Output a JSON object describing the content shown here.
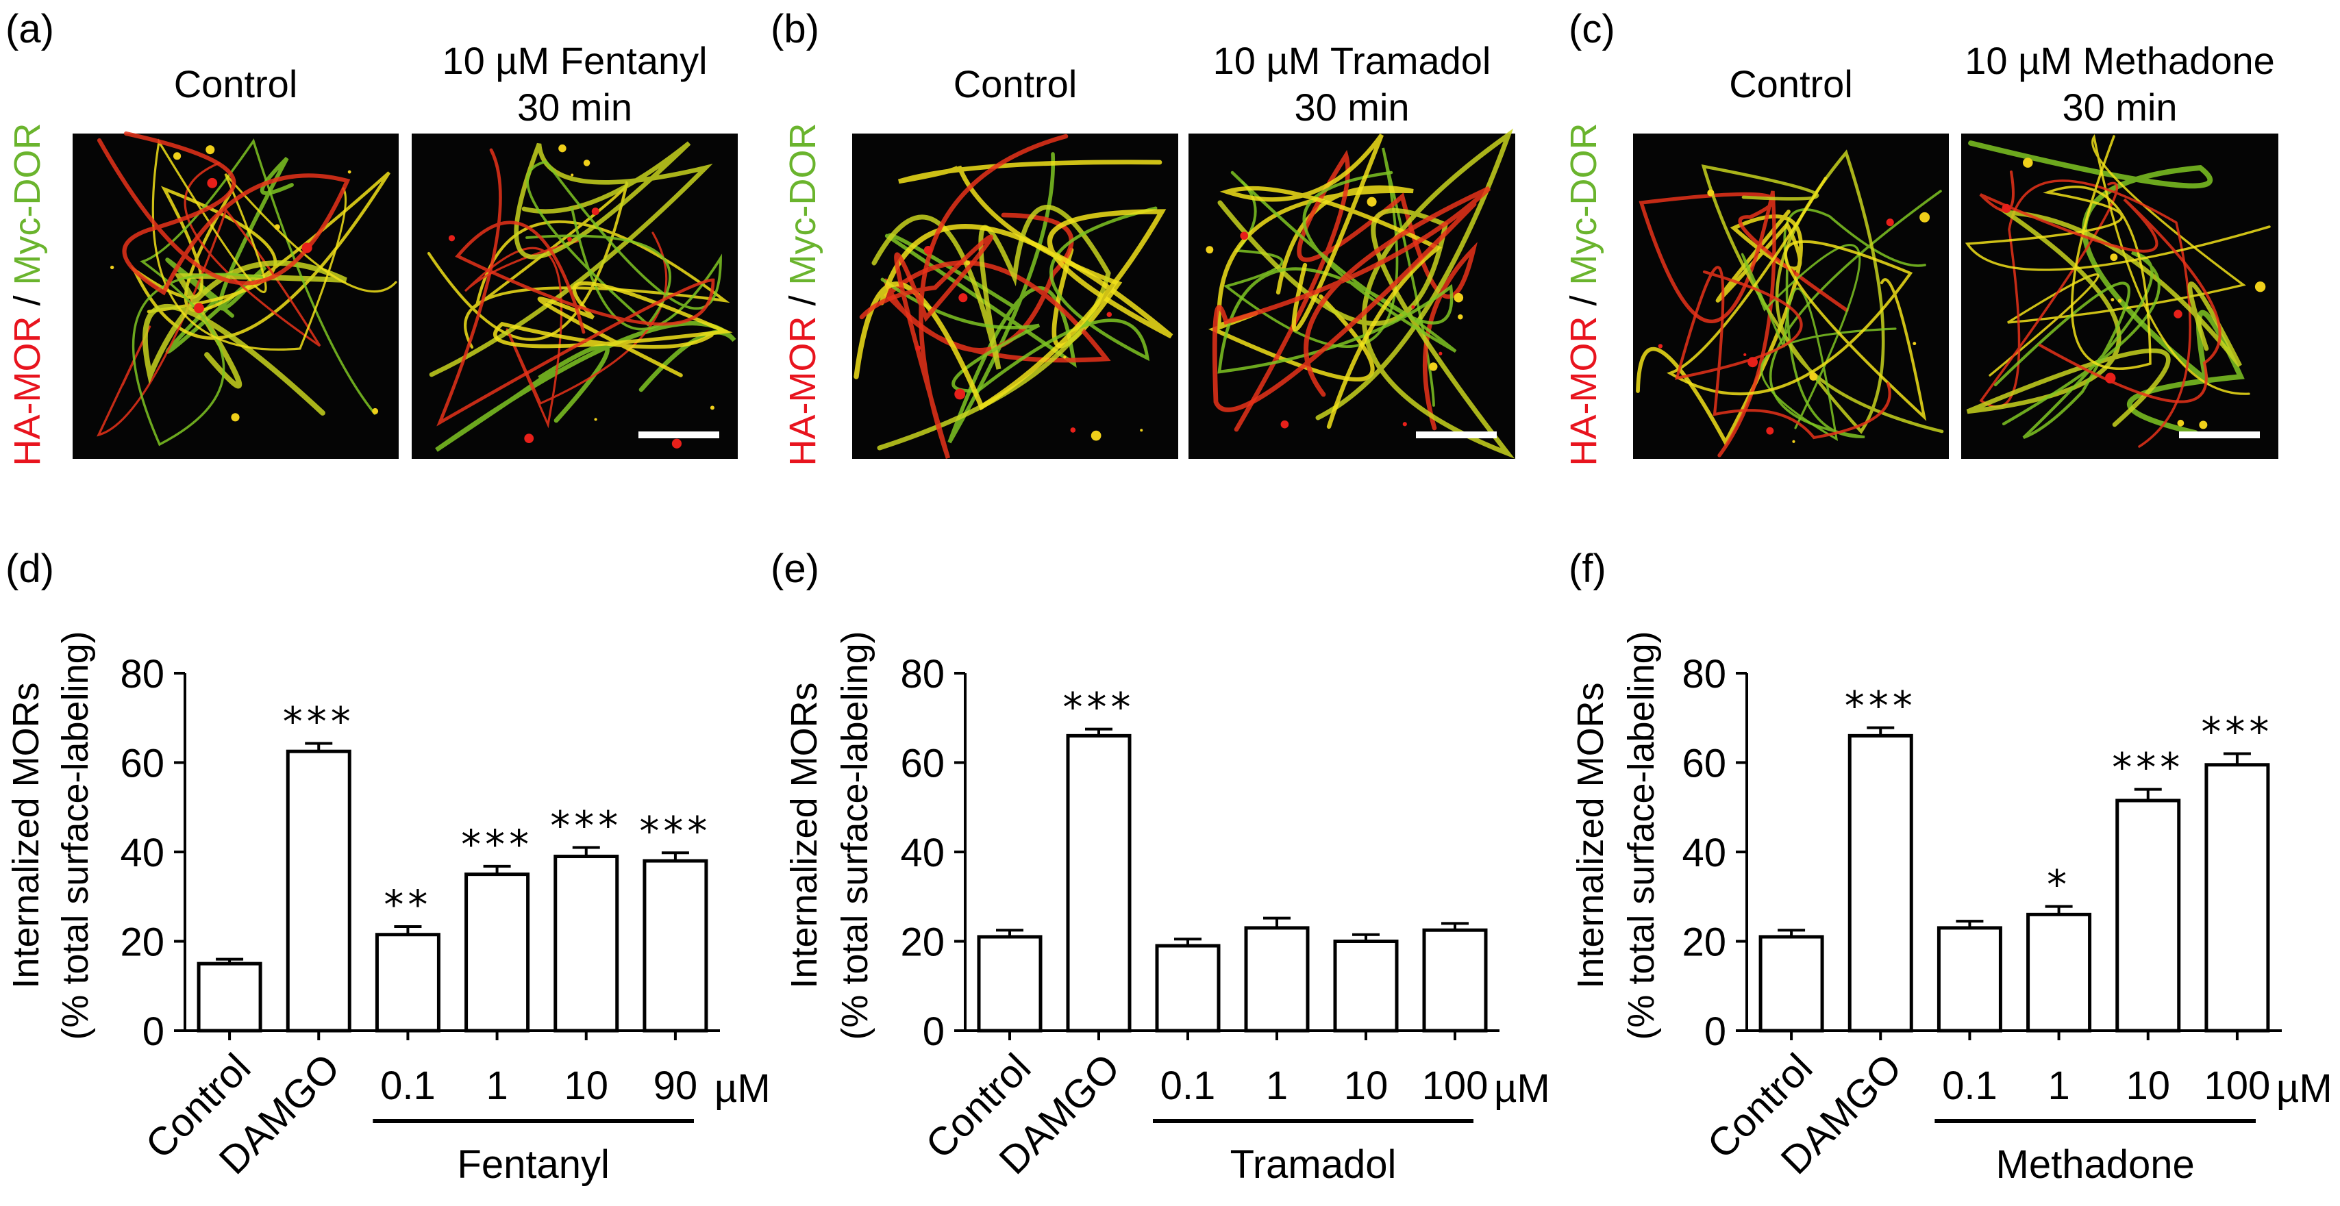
{
  "micrographs": [
    {
      "panel": "(a)",
      "side_label": {
        "red": "HA-MOR",
        "sep": " / ",
        "green": "Myc-DOR"
      },
      "left_title": [
        "Control"
      ],
      "right_title": [
        "10 µM Fentanyl",
        "30 min"
      ]
    },
    {
      "panel": "(b)",
      "side_label": {
        "red": "HA-MOR",
        "sep": " / ",
        "green": "Myc-DOR"
      },
      "left_title": [
        "Control"
      ],
      "right_title": [
        "10 µM Tramadol",
        "30 min"
      ]
    },
    {
      "panel": "(c)",
      "side_label": {
        "red": "HA-MOR",
        "sep": " / ",
        "green": "Myc-DOR"
      },
      "left_title": [
        "Control"
      ],
      "right_title": [
        "10 µM Methadone",
        "30 min"
      ]
    }
  ],
  "colors": {
    "red": "#e8141e",
    "green": "#6ab42d",
    "bar_fill": "#ffffff",
    "bar_edge": "#000000"
  },
  "chart_data": [
    {
      "type": "bar",
      "panel": "(d)",
      "ylabel": [
        "Internalized MORs",
        "(% total surface-labeling)"
      ],
      "ylim": [
        0,
        80
      ],
      "yticks": [
        "0",
        "20",
        "40",
        "60",
        "80"
      ],
      "categories": [
        "Control",
        "DAMGO",
        "0.1",
        "1",
        "10",
        "90"
      ],
      "unit": "µM",
      "group_label": "Fentanyl",
      "values": [
        15,
        62.5,
        21.5,
        35,
        39,
        38
      ],
      "errors": [
        1,
        1.8,
        1.8,
        1.8,
        2,
        1.8
      ],
      "significance": [
        "",
        "***",
        "**",
        "***",
        "***",
        "***"
      ]
    },
    {
      "type": "bar",
      "panel": "(e)",
      "ylabel": [
        "Internalized MORs",
        "(% total surface-labeling)"
      ],
      "ylim": [
        0,
        80
      ],
      "yticks": [
        "0",
        "20",
        "40",
        "60",
        "80"
      ],
      "categories": [
        "Control",
        "DAMGO",
        "0.1",
        "1",
        "10",
        "100"
      ],
      "unit": "µM",
      "group_label": "Tramadol",
      "values": [
        21,
        66,
        19,
        23,
        20,
        22.5
      ],
      "errors": [
        1.5,
        1.5,
        1.5,
        2.2,
        1.5,
        1.5
      ],
      "significance": [
        "",
        "***",
        "",
        "",
        "",
        ""
      ]
    },
    {
      "type": "bar",
      "panel": "(f)",
      "ylabel": [
        "Internalized MORs",
        "(% total surface-labeling)"
      ],
      "ylim": [
        0,
        80
      ],
      "yticks": [
        "0",
        "20",
        "40",
        "60",
        "80"
      ],
      "categories": [
        "Control",
        "DAMGO",
        "0.1",
        "1",
        "10",
        "100"
      ],
      "unit": "µM",
      "group_label": "Methadone",
      "values": [
        21,
        66,
        23,
        26,
        51.5,
        59.5
      ],
      "errors": [
        1.5,
        1.8,
        1.5,
        1.8,
        2.5,
        2.5
      ],
      "significance": [
        "",
        "***",
        "",
        "*",
        "***",
        "***"
      ]
    }
  ]
}
